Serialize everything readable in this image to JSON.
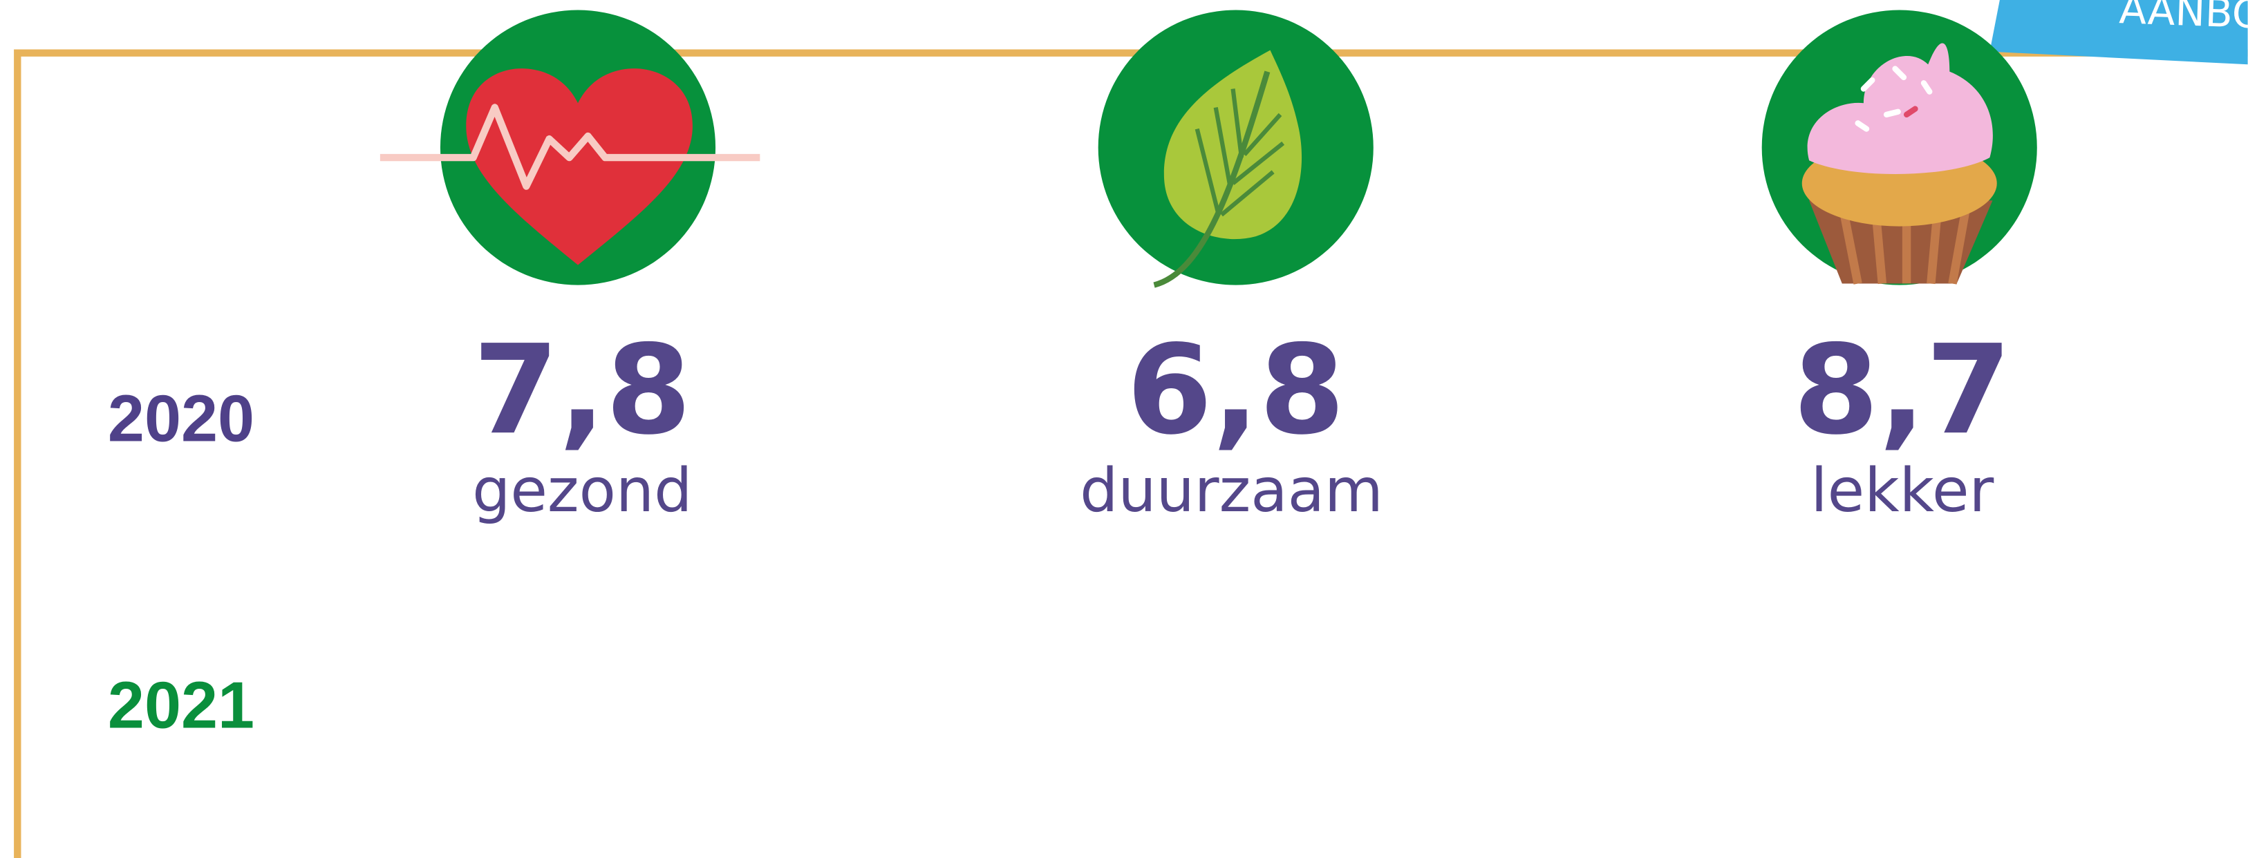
{
  "banner": "AANBOD",
  "years": [
    "2020",
    "2021"
  ],
  "scores": [
    {
      "value": "7,8",
      "label": "gezond"
    },
    {
      "value": "6,8",
      "label": "duurzaam"
    },
    {
      "value": "8,7",
      "label": "lekker"
    }
  ]
}
